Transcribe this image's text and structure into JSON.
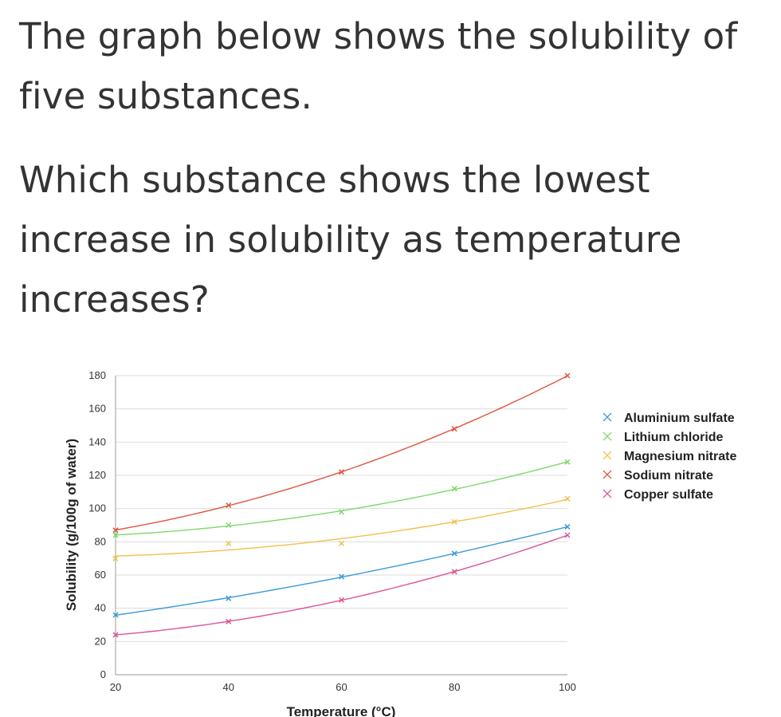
{
  "question": {
    "intro": "The graph below shows the solubility of five substances.",
    "prompt": "Which substance shows the lowest increase in solubility as temperature increases?"
  },
  "chart_data": {
    "type": "scatter",
    "title": "",
    "xlabel": "Temperature (°C)",
    "ylabel": "Solubility (g/100g of water)",
    "xlim": [
      20,
      100
    ],
    "ylim": [
      0,
      180
    ],
    "xticks": [
      20,
      40,
      60,
      80,
      100
    ],
    "yticks": [
      0,
      20,
      40,
      60,
      80,
      100,
      120,
      140,
      160,
      180
    ],
    "grid": "horizontal",
    "legend_position": "right",
    "x": [
      20,
      40,
      60,
      80,
      100
    ],
    "series": [
      {
        "name": "Aluminium sulfate",
        "color": "#3a9ad9",
        "values": [
          36,
          46,
          59,
          73,
          89
        ]
      },
      {
        "name": "Lithium chloride",
        "color": "#7dd86a",
        "values": [
          84,
          90,
          98,
          112,
          128
        ]
      },
      {
        "name": "Magnesium nitrate",
        "color": "#f2c14e",
        "values": [
          70,
          79,
          79,
          92,
          106
        ]
      },
      {
        "name": "Sodium nitrate",
        "color": "#e0533f",
        "values": [
          87,
          102,
          122,
          148,
          180
        ]
      },
      {
        "name": "Copper sulfate",
        "color": "#d9559a",
        "values": [
          24,
          32,
          45,
          62,
          84
        ]
      }
    ]
  }
}
